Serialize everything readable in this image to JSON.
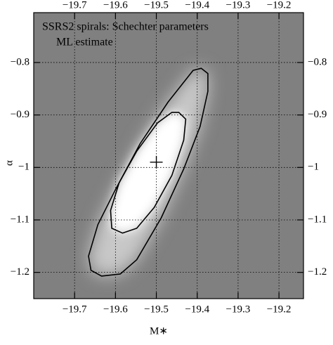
{
  "chart_data": {
    "type": "contour",
    "title": "SSRS2 spirals: Schechter parameters",
    "subtitle": "ML estimate",
    "x_label": "M∗",
    "y_label": "α",
    "xlim": [
      -19.8,
      -19.14
    ],
    "ylim": [
      -1.25,
      -0.705
    ],
    "xticks": [
      {
        "value": -19.7,
        "label": "−19.7"
      },
      {
        "value": -19.6,
        "label": "−19.6"
      },
      {
        "value": -19.5,
        "label": "−19.5"
      },
      {
        "value": -19.4,
        "label": "−19.4"
      },
      {
        "value": -19.3,
        "label": "−19.3"
      },
      {
        "value": -19.2,
        "label": "−19.2"
      }
    ],
    "yticks": [
      {
        "value": -0.8,
        "label": "−0.8"
      },
      {
        "value": -0.9,
        "label": "−0.9"
      },
      {
        "value": -1,
        "label": "−1"
      },
      {
        "value": -1.1,
        "label": "−1.1"
      },
      {
        "value": -1.2,
        "label": "−1.2"
      }
    ],
    "grid": true,
    "color": "#000000",
    "background": "#808080",
    "contours": [
      {
        "x": [
          -19.39,
          -19.374,
          -19.374,
          -19.393,
          -19.433,
          -19.488,
          -19.548,
          -19.588,
          -19.634,
          -19.66,
          -19.666,
          -19.643,
          -19.6,
          -19.54,
          -19.471,
          -19.41
        ],
        "y": [
          -0.811,
          -0.821,
          -0.855,
          -0.922,
          -1.003,
          -1.096,
          -1.176,
          -1.203,
          -1.207,
          -1.196,
          -1.169,
          -1.109,
          -1.042,
          -0.955,
          -0.875,
          -0.815
        ]
      },
      {
        "x": [
          -19.445,
          -19.428,
          -19.433,
          -19.462,
          -19.505,
          -19.548,
          -19.583,
          -19.609,
          -19.612,
          -19.591,
          -19.548,
          -19.497,
          -19.462
        ],
        "y": [
          -0.895,
          -0.908,
          -0.948,
          -1.015,
          -1.076,
          -1.116,
          -1.125,
          -1.116,
          -1.082,
          -1.029,
          -0.969,
          -0.915,
          -0.895
        ]
      }
    ],
    "best_fit": {
      "x": -19.5,
      "y": -0.99
    }
  }
}
